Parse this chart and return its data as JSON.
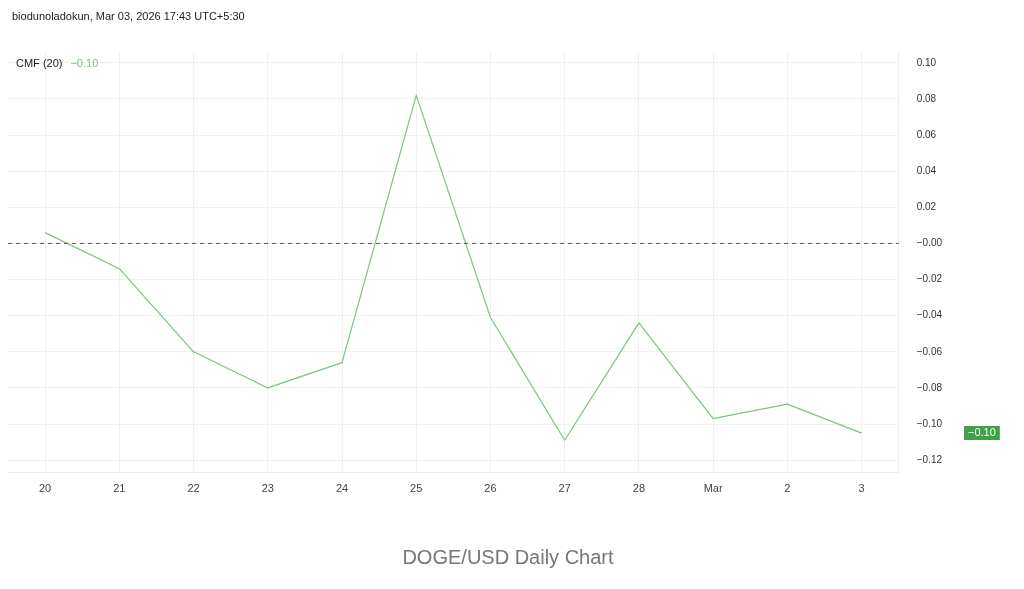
{
  "chart_data": {
    "type": "line",
    "subtitle": "biodunoladokun, Mar 03, 2026 17:43 UTC+5:30",
    "categories": [
      "20",
      "21",
      "22",
      "23",
      "24",
      "25",
      "26",
      "27",
      "28",
      "Mar",
      "2",
      "3"
    ],
    "series": [
      {
        "name": "CMF (20)",
        "color": "#7cc47a",
        "values": [
          0.006,
          -0.014,
          -0.06,
          -0.08,
          -0.066,
          0.082,
          -0.041,
          -0.109,
          -0.044,
          -0.097,
          -0.089,
          -0.105
        ]
      }
    ],
    "ylim": [
      -0.127,
      0.106
    ],
    "yticks": [
      {
        "value": -0.12,
        "label": "−0.12"
      },
      {
        "value": -0.1,
        "label": "−0.10"
      },
      {
        "value": -0.08,
        "label": "−0.08"
      },
      {
        "value": -0.06,
        "label": "−0.06"
      },
      {
        "value": -0.04,
        "label": "−0.04"
      },
      {
        "value": -0.02,
        "label": "−0.02"
      },
      {
        "value": 0,
        "label": "−0.00"
      },
      {
        "value": 0.02,
        "label": "0.02"
      },
      {
        "value": 0.04,
        "label": "0.04"
      },
      {
        "value": 0.06,
        "label": "0.06"
      },
      {
        "value": 0.08,
        "label": "0.08"
      },
      {
        "value": 0.1,
        "label": "0.10"
      }
    ],
    "ref_lines": [
      {
        "axis": "y",
        "value": 0,
        "color": "#555555",
        "line_style": "dashed"
      }
    ],
    "grid": true,
    "legend": "top left",
    "marker": "none",
    "line_style": "solid",
    "annotations": [
      "−0.10",
      "−0.10",
      "DOGE/USD Daily Chart"
    ]
  }
}
